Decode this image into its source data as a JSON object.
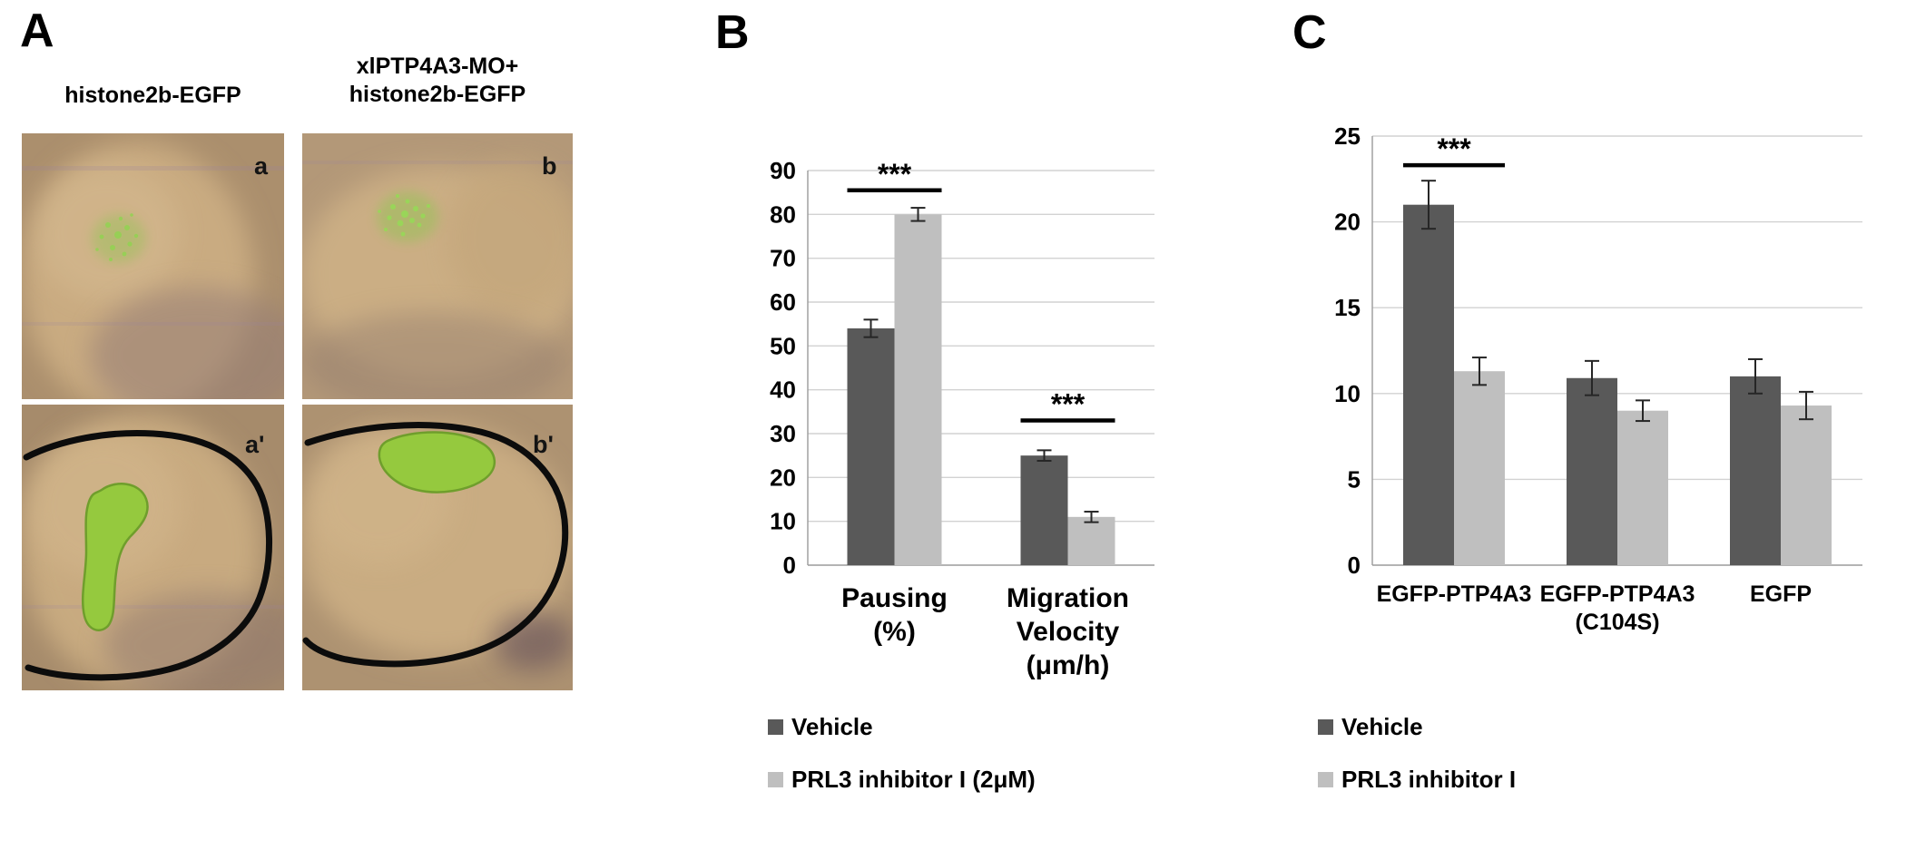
{
  "panel_a": {
    "label": "A",
    "column1_title": "histone2b-EGFP",
    "column2_title": [
      "xlPTP4A3-MO+",
      "histone2b-EGFP"
    ],
    "image1": {
      "top_label": "a",
      "bottom_label": "a'"
    },
    "image2": {
      "top_label": "b",
      "bottom_label": "b'"
    }
  },
  "panel_b": {
    "label": "B"
  },
  "panel_c": {
    "label": "C"
  },
  "colors": {
    "series_dark": "#595959",
    "series_light": "#bfbfbf",
    "gridline": "#d2d2d2",
    "axis": "#9b9b9b",
    "highlight_green": "#95c93e"
  },
  "chart_data": [
    {
      "id": "chart-b",
      "type": "bar",
      "title": "",
      "xlabel": "",
      "ylabel": "",
      "categories": [
        [
          "Pausing",
          "(%)"
        ],
        [
          "Migration",
          "Velocity",
          "(μm/h)"
        ]
      ],
      "series": [
        {
          "name": "Vehicle",
          "color": "#595959",
          "values": [
            54,
            25
          ],
          "errors": [
            2,
            1.2
          ]
        },
        {
          "name": "PRL3 inhibitor I (2μM)",
          "color": "#bfbfbf",
          "values": [
            80,
            11
          ],
          "errors": [
            1.5,
            1.2
          ]
        }
      ],
      "ylim": [
        0,
        90
      ],
      "ytick_step": 10,
      "grid": true,
      "legend_position": "bottom",
      "significance": [
        {
          "group_index": 0,
          "label": "***",
          "line_y": 85.5
        },
        {
          "group_index": 1,
          "label": "***",
          "line_y": 33
        }
      ]
    },
    {
      "id": "chart-c",
      "type": "bar",
      "title": "",
      "xlabel": "",
      "ylabel": "",
      "categories": [
        [
          "EGFP-PTP4A3"
        ],
        [
          "EGFP-PTP4A3",
          "(C104S)"
        ],
        [
          "EGFP"
        ]
      ],
      "series": [
        {
          "name": "Vehicle",
          "color": "#595959",
          "values": [
            21,
            10.9,
            11
          ],
          "errors": [
            1.4,
            1.0,
            1.0
          ]
        },
        {
          "name": "PRL3 inhibitor I",
          "color": "#bfbfbf",
          "values": [
            11.3,
            9.0,
            9.3
          ],
          "errors": [
            0.8,
            0.6,
            0.8
          ]
        }
      ],
      "ylim": [
        0,
        25
      ],
      "ytick_step": 5,
      "grid": true,
      "legend_position": "bottom",
      "significance": [
        {
          "group_index": 0,
          "label": "***",
          "line_y": 23.3
        }
      ]
    }
  ]
}
